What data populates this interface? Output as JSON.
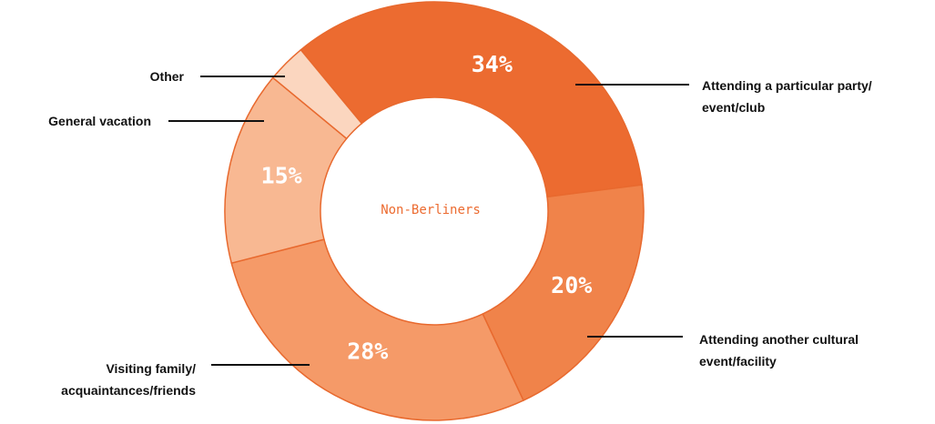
{
  "chart_data": {
    "type": "donut",
    "center_label": "Non-Berliners",
    "categories": [
      "Attending a particular party/\nevent/club",
      "Attending another cultural\nevent/facility",
      "Visiting family/\nacquaintances/friends",
      "General vacation",
      "Other"
    ],
    "values": [
      34,
      20,
      28,
      15,
      3
    ],
    "value_labels": [
      "34%",
      "20%",
      "28%",
      "15%",
      null
    ],
    "colors": [
      "#ec6b30",
      "#f0834a",
      "#f59a68",
      "#f8b892",
      "#fbd6bf"
    ]
  }
}
